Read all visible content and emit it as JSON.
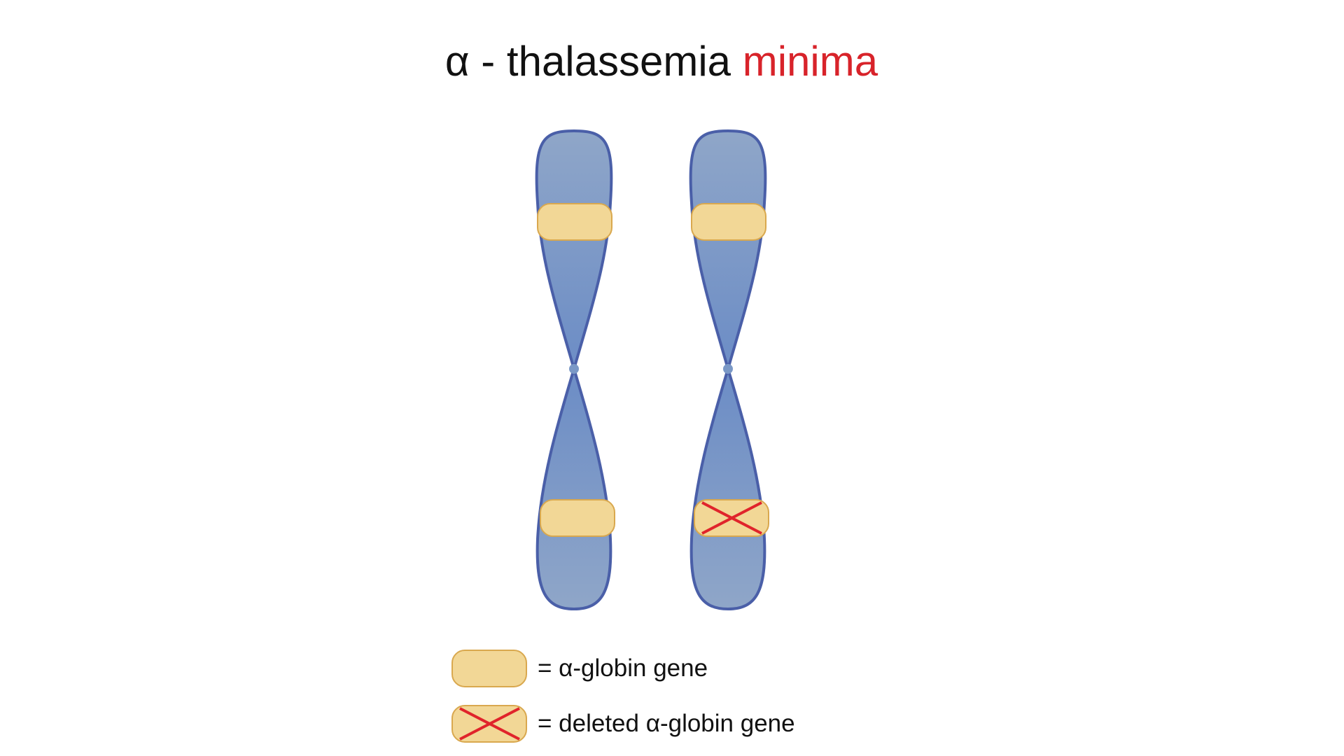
{
  "title": {
    "prefix": "α - thalassemia ",
    "highlight": "minima"
  },
  "colors": {
    "chromosome_fill_top": "#8fa6c8",
    "chromosome_fill_mid": "#6f8fc6",
    "chromosome_stroke": "#4a5fa8",
    "gene_fill": "#f2d796",
    "gene_stroke": "#d9a84e",
    "deletion_cross": "#e0242b",
    "highlight_text": "#d8232a"
  },
  "chromosomes": [
    {
      "genes": [
        {
          "arm": "upper",
          "deleted": false
        },
        {
          "arm": "lower",
          "deleted": false
        }
      ]
    },
    {
      "genes": [
        {
          "arm": "upper",
          "deleted": false
        },
        {
          "arm": "lower",
          "deleted": true
        }
      ]
    }
  ],
  "legend": {
    "gene_label": "= α-globin gene",
    "deleted_label": "= deleted α-globin gene"
  }
}
